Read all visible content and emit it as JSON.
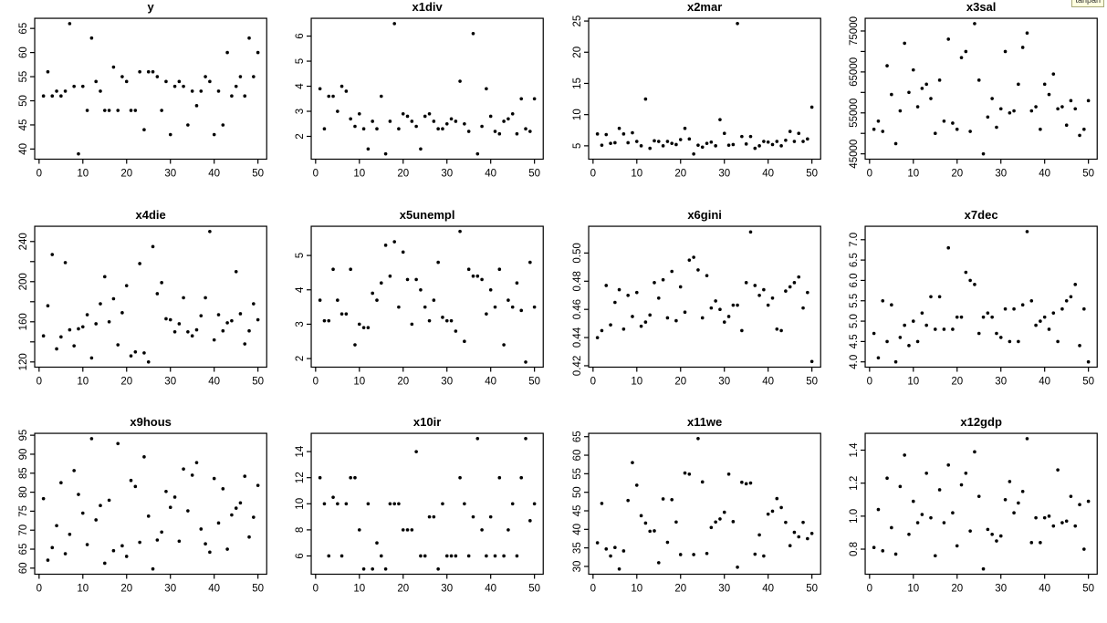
{
  "badge": {
    "text": "tanpan",
    "bg": "#ffffe0",
    "border": "#a8a878"
  },
  "style": {
    "point_color": "#000000",
    "axis_color": "#000000",
    "background": "#ffffff"
  },
  "layout": {
    "rows": 3,
    "columns": 4,
    "grid": "off",
    "legend": "none"
  },
  "chart_data": [
    {
      "type": "scatter",
      "title": "y",
      "x_mode": "index",
      "n": 50,
      "xlim": [
        -1,
        52
      ],
      "ylim": [
        37.9,
        67.1
      ],
      "xticks": [
        0,
        10,
        20,
        30,
        40,
        50
      ],
      "xtick_labels": [
        "0",
        "10",
        "20",
        "30",
        "40",
        "50"
      ],
      "ytick_values": [
        40,
        45,
        50,
        55,
        60,
        65
      ],
      "ytick_labels": [
        "40",
        "45",
        "50",
        "55",
        "60",
        "65"
      ],
      "ytick_minor": [],
      "y": [
        51,
        56,
        51,
        52,
        51,
        52,
        66,
        53,
        39,
        53,
        48,
        63,
        54,
        52,
        48,
        48,
        57,
        48,
        55,
        54,
        48,
        48,
        56,
        44,
        56,
        56,
        55,
        48,
        54,
        43,
        53,
        54,
        53,
        45,
        52,
        49,
        52,
        55,
        54,
        43,
        52,
        45,
        60,
        51,
        53,
        55,
        51,
        63,
        55,
        60
      ]
    },
    {
      "type": "scatter",
      "title": "x1div",
      "x_mode": "index",
      "n": 50,
      "xlim": [
        -1,
        52
      ],
      "ylim": [
        1.09,
        6.71
      ],
      "xticks": [
        0,
        10,
        20,
        30,
        40,
        50
      ],
      "xtick_labels": [
        "0",
        "10",
        "20",
        "30",
        "40",
        "50"
      ],
      "ytick_values": [
        2,
        3,
        4,
        5,
        6
      ],
      "ytick_labels": [
        "2",
        "3",
        "4",
        "5",
        "6"
      ],
      "ytick_minor": [],
      "y": [
        3.9,
        2.3,
        3.6,
        3.6,
        3.0,
        4.0,
        3.8,
        2.7,
        2.4,
        2.9,
        2.3,
        1.5,
        2.6,
        2.3,
        3.6,
        1.3,
        2.6,
        6.5,
        2.3,
        2.9,
        2.8,
        2.6,
        2.4,
        1.5,
        2.8,
        2.9,
        2.6,
        2.3,
        2.3,
        2.5,
        2.7,
        2.6,
        4.2,
        2.5,
        2.2,
        6.1,
        1.3,
        2.4,
        3.9,
        2.8,
        2.2,
        2.1,
        2.6,
        2.7,
        2.9,
        2.1,
        3.5,
        2.3,
        2.2,
        3.5
      ]
    },
    {
      "type": "scatter",
      "title": "x2mar",
      "x_mode": "index",
      "n": 50,
      "xlim": [
        -1,
        52
      ],
      "ylim": [
        2.86,
        25.44
      ],
      "xticks": [
        0,
        10,
        20,
        30,
        40,
        50
      ],
      "xtick_labels": [
        "0",
        "10",
        "20",
        "30",
        "40",
        "50"
      ],
      "ytick_values": [
        5,
        10,
        15,
        20,
        25
      ],
      "ytick_labels": [
        "5",
        "10",
        "15",
        "20",
        "25"
      ],
      "ytick_minor": [],
      "y": [
        6.9,
        5.1,
        6.8,
        5.4,
        5.5,
        7.8,
        6.9,
        5.5,
        7.1,
        5.7,
        5.0,
        12.5,
        4.6,
        5.8,
        5.7,
        5.0,
        5.7,
        5.4,
        5.2,
        6.0,
        7.8,
        6.1,
        3.7,
        5.1,
        4.8,
        5.4,
        5.6,
        5.0,
        9.2,
        7.0,
        5.1,
        5.2,
        24.6,
        6.5,
        5.3,
        6.5,
        4.6,
        5.0,
        5.7,
        5.6,
        5.2,
        5.7,
        5.0,
        5.9,
        7.3,
        5.7,
        7.0,
        5.7,
        6.1,
        11.2
      ]
    },
    {
      "type": "scatter",
      "title": "x3sal",
      "x_mode": "index",
      "n": 50,
      "xlim": [
        -1,
        52
      ],
      "ylim": [
        43700,
        78100
      ],
      "xticks": [
        0,
        10,
        20,
        30,
        40,
        50
      ],
      "xtick_labels": [
        "0",
        "10",
        "20",
        "30",
        "40",
        "50"
      ],
      "ytick_values": [
        45000,
        55000,
        65000,
        75000
      ],
      "ytick_labels": [
        "45000",
        "55000",
        "65000",
        "75000"
      ],
      "ytick_minor": [
        50000,
        60000,
        70000
      ],
      "y": [
        51000,
        53000,
        50500,
        66500,
        59500,
        47500,
        55500,
        72000,
        60000,
        65500,
        56500,
        61000,
        62000,
        58500,
        50000,
        63000,
        53000,
        73000,
        52500,
        51000,
        68500,
        70000,
        50500,
        76800,
        63000,
        45000,
        54000,
        58500,
        51500,
        56000,
        70000,
        55000,
        55500,
        62000,
        71000,
        74500,
        55500,
        56500,
        51000,
        62000,
        59500,
        64500,
        56000,
        56500,
        52000,
        58000,
        56000,
        49500,
        51000,
        58000
      ]
    },
    {
      "type": "scatter",
      "title": "x4die",
      "x_mode": "index",
      "n": 50,
      "xlim": [
        -1,
        52
      ],
      "ylim": [
        114.8,
        255.2
      ],
      "xticks": [
        0,
        10,
        20,
        30,
        40,
        50
      ],
      "xtick_labels": [
        "0",
        "10",
        "20",
        "30",
        "40",
        "50"
      ],
      "ytick_values": [
        120,
        160,
        200,
        240
      ],
      "ytick_labels": [
        "120",
        "160",
        "200",
        "240"
      ],
      "ytick_minor": [
        140,
        180,
        220
      ],
      "y": [
        146,
        176,
        227,
        133,
        145,
        219,
        152,
        136,
        153,
        155,
        167,
        124,
        158,
        178,
        205,
        160,
        183,
        137,
        169,
        196,
        126,
        130,
        218,
        129,
        120,
        235,
        188,
        199,
        163,
        162,
        150,
        158,
        184,
        150,
        146,
        152,
        166,
        184,
        250,
        142,
        167,
        151,
        159,
        161,
        210,
        168,
        138,
        151,
        178,
        162
      ]
    },
    {
      "type": "scatter",
      "title": "x5unempl",
      "x_mode": "index",
      "n": 50,
      "xlim": [
        -1,
        52
      ],
      "ylim": [
        1.75,
        5.85
      ],
      "xticks": [
        0,
        10,
        20,
        30,
        40,
        50
      ],
      "xtick_labels": [
        "0",
        "10",
        "20",
        "30",
        "40",
        "50"
      ],
      "ytick_values": [
        2,
        3,
        4,
        5
      ],
      "ytick_labels": [
        "2",
        "3",
        "4",
        "5"
      ],
      "ytick_minor": [],
      "y": [
        3.7,
        3.1,
        3.1,
        4.6,
        3.7,
        3.3,
        3.3,
        4.6,
        2.4,
        3.0,
        2.9,
        2.9,
        3.9,
        3.7,
        4.2,
        5.3,
        4.4,
        5.4,
        3.5,
        5.1,
        4.3,
        3.0,
        4.3,
        4.0,
        3.5,
        3.1,
        3.7,
        4.8,
        3.2,
        3.1,
        3.1,
        2.8,
        5.7,
        2.5,
        4.6,
        4.4,
        4.4,
        4.3,
        3.3,
        4.0,
        3.5,
        4.6,
        2.4,
        3.7,
        3.5,
        4.2,
        3.4,
        1.9,
        4.8,
        3.5
      ]
    },
    {
      "type": "scatter",
      "title": "x6gini",
      "x_mode": "index",
      "n": 50,
      "xlim": [
        -1,
        52
      ],
      "ylim": [
        0.419,
        0.519
      ],
      "xticks": [
        0,
        10,
        20,
        30,
        40,
        50
      ],
      "xtick_labels": [
        "0",
        "10",
        "20",
        "30",
        "40",
        "50"
      ],
      "ytick_values": [
        0.42,
        0.44,
        0.46,
        0.48,
        0.5
      ],
      "ytick_labels": [
        "0.42",
        "0.44",
        "0.46",
        "0.48",
        "0.50"
      ],
      "ytick_minor": [],
      "y": [
        0.44,
        0.445,
        0.477,
        0.449,
        0.465,
        0.474,
        0.446,
        0.47,
        0.455,
        0.472,
        0.448,
        0.451,
        0.456,
        0.479,
        0.468,
        0.481,
        0.454,
        0.487,
        0.452,
        0.476,
        0.458,
        0.495,
        0.497,
        0.488,
        0.454,
        0.484,
        0.461,
        0.466,
        0.46,
        0.451,
        0.455,
        0.463,
        0.463,
        0.445,
        0.479,
        0.515,
        0.477,
        0.47,
        0.474,
        0.463,
        0.468,
        0.446,
        0.445,
        0.473,
        0.476,
        0.479,
        0.483,
        0.461,
        0.472,
        0.423
      ]
    },
    {
      "type": "scatter",
      "title": "x7dec",
      "x_mode": "index",
      "n": 50,
      "xlim": [
        -1,
        52
      ],
      "ylim": [
        3.87,
        7.33
      ],
      "xticks": [
        0,
        10,
        20,
        30,
        40,
        50
      ],
      "xtick_labels": [
        "0",
        "10",
        "20",
        "30",
        "40",
        "50"
      ],
      "ytick_values": [
        4.0,
        4.5,
        5.0,
        5.5,
        6.0,
        6.5,
        7.0
      ],
      "ytick_labels": [
        "4.0",
        "4.5",
        "5.0",
        "5.5",
        "6.0",
        "6.5",
        "7.0"
      ],
      "ytick_minor": [],
      "y": [
        4.7,
        4.1,
        5.5,
        4.5,
        5.4,
        4.0,
        4.6,
        4.9,
        4.4,
        5.0,
        4.5,
        5.2,
        4.9,
        5.6,
        4.8,
        5.6,
        4.8,
        6.8,
        4.8,
        5.1,
        5.1,
        6.2,
        6.0,
        5.9,
        4.7,
        5.1,
        5.2,
        5.1,
        4.7,
        4.6,
        5.3,
        4.5,
        5.3,
        4.5,
        5.4,
        7.2,
        5.5,
        4.9,
        5.0,
        5.1,
        4.8,
        5.2,
        4.5,
        5.3,
        5.5,
        5.6,
        5.9,
        4.4,
        5.3,
        4.0
      ]
    },
    {
      "type": "scatter",
      "title": "x9hous",
      "x_mode": "index",
      "n": 50,
      "xlim": [
        -1,
        52
      ],
      "ylim": [
        58.4,
        95.5
      ],
      "xticks": [
        0,
        10,
        20,
        30,
        40,
        50
      ],
      "xtick_labels": [
        "0",
        "10",
        "20",
        "30",
        "40",
        "50"
      ],
      "ytick_values": [
        60,
        65,
        70,
        75,
        80,
        85,
        90,
        95
      ],
      "ytick_labels": [
        "60",
        "65",
        "70",
        "75",
        "80",
        "85",
        "90",
        "95"
      ],
      "ytick_minor": [],
      "y": [
        78.3,
        62.1,
        65.4,
        71.2,
        82.5,
        63.8,
        68.9,
        85.7,
        79.4,
        74.5,
        66.2,
        94.1,
        72.7,
        76.5,
        61.3,
        77.9,
        64.6,
        92.8,
        65.9,
        63.1,
        83.1,
        81.5,
        66.8,
        89.3,
        73.7,
        59.8,
        67.4,
        69.5,
        80.2,
        76.0,
        78.7,
        67.1,
        86.1,
        75.1,
        84.5,
        87.8,
        70.3,
        66.4,
        64.2,
        83.6,
        71.9,
        80.9,
        65.0,
        74.0,
        75.8,
        77.2,
        84.2,
        68.2,
        73.4,
        81.8
      ]
    },
    {
      "type": "scatter",
      "title": "x10ir",
      "x_mode": "index",
      "n": 50,
      "xlim": [
        -1,
        52
      ],
      "ylim": [
        4.6,
        15.4
      ],
      "xticks": [
        0,
        10,
        20,
        30,
        40,
        50
      ],
      "xtick_labels": [
        "0",
        "10",
        "20",
        "30",
        "40",
        "50"
      ],
      "ytick_values": [
        6,
        8,
        10,
        12,
        14
      ],
      "ytick_labels": [
        "6",
        "8",
        "10",
        "12",
        "14"
      ],
      "ytick_minor": [],
      "y": [
        12,
        10,
        6,
        10.5,
        10,
        6,
        10,
        12,
        12,
        8,
        5,
        10,
        5,
        7,
        6,
        5,
        10,
        10,
        10,
        8,
        8,
        8,
        14,
        6,
        6,
        9,
        9,
        5,
        10,
        6,
        6,
        6,
        12,
        10,
        6,
        9,
        15,
        8,
        6,
        9,
        6,
        12,
        6,
        8,
        10,
        6,
        12,
        15,
        8.7,
        10
      ]
    },
    {
      "type": "scatter",
      "title": "x11we",
      "x_mode": "index",
      "n": 50,
      "xlim": [
        -1,
        52
      ],
      "ylim": [
        27.9,
        65.9
      ],
      "xticks": [
        0,
        10,
        20,
        30,
        40,
        50
      ],
      "xtick_labels": [
        "0",
        "10",
        "20",
        "30",
        "40",
        "50"
      ],
      "ytick_values": [
        30,
        35,
        40,
        45,
        50,
        55,
        60,
        65
      ],
      "ytick_labels": [
        "30",
        "35",
        "40",
        "45",
        "50",
        "55",
        "60",
        "65"
      ],
      "ytick_minor": [],
      "y": [
        36.4,
        47.0,
        34.7,
        32.8,
        35.1,
        29.3,
        34.2,
        47.8,
        58.0,
        51.9,
        43.7,
        41.7,
        39.5,
        39.6,
        31.0,
        48.2,
        36.5,
        48.0,
        42.0,
        33.2,
        55.2,
        54.9,
        33.2,
        64.5,
        52.8,
        33.5,
        40.5,
        42.0,
        42.8,
        44.6,
        54.9,
        42.1,
        29.8,
        52.7,
        52.3,
        52.5,
        33.3,
        38.5,
        32.8,
        44.1,
        44.9,
        48.3,
        45.9,
        41.9,
        35.6,
        39.2,
        38.0,
        41.9,
        37.5,
        38.9
      ]
    },
    {
      "type": "scatter",
      "title": "x12gdp",
      "x_mode": "index",
      "n": 50,
      "xlim": [
        -1,
        52
      ],
      "ylim": [
        0.648,
        1.502
      ],
      "xticks": [
        0,
        10,
        20,
        30,
        40,
        50
      ],
      "xtick_labels": [
        "0",
        "10",
        "20",
        "30",
        "40",
        "50"
      ],
      "ytick_values": [
        0.8,
        1.0,
        1.2,
        1.4
      ],
      "ytick_labels": [
        "0.8",
        "1.0",
        "1.2",
        "1.4"
      ],
      "ytick_minor": [],
      "y": [
        0.81,
        1.04,
        0.79,
        1.23,
        0.93,
        0.77,
        1.18,
        1.37,
        0.89,
        1.09,
        0.96,
        1.01,
        1.26,
        0.99,
        0.76,
        1.16,
        0.96,
        1.31,
        1.02,
        0.82,
        1.19,
        1.26,
        0.91,
        1.39,
        1.12,
        0.68,
        0.92,
        0.89,
        0.85,
        0.88,
        1.1,
        1.21,
        1.02,
        1.08,
        1.15,
        1.47,
        0.84,
        0.99,
        0.84,
        0.99,
        1.0,
        0.94,
        1.28,
        0.96,
        0.97,
        1.12,
        0.94,
        1.07,
        0.8,
        1.09
      ]
    }
  ]
}
